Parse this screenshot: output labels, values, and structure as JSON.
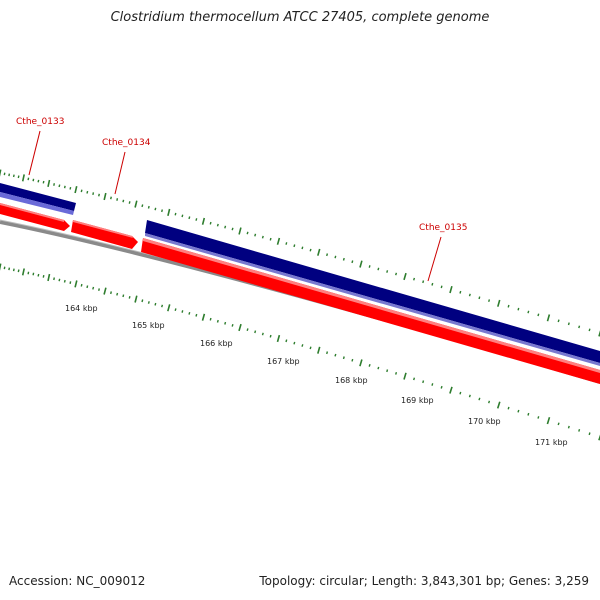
{
  "title": "Clostridium thermocellum ATCC 27405, complete genome",
  "footer": {
    "accession": "Accession: NC_009012",
    "summary": "Topology: circular; Length: 3,843,301 bp; Genes: 3,259"
  },
  "genes": [
    {
      "name": "Cthe_0133"
    },
    {
      "name": "Cthe_0134"
    },
    {
      "name": "Cthe_0135"
    }
  ],
  "ticks": [
    "164 kbp",
    "165 kbp",
    "166 kbp",
    "167 kbp",
    "168 kbp",
    "169 kbp",
    "170 kbp",
    "171 kbp"
  ],
  "colors": {
    "forward_cds": "#000080",
    "forward_cds_light": "#6a6ad8",
    "reverse_cds": "#ff0000",
    "backbone": "#7a7a7a",
    "tick_marks": "#2e7d2e",
    "gene_label": "#cc0000"
  }
}
